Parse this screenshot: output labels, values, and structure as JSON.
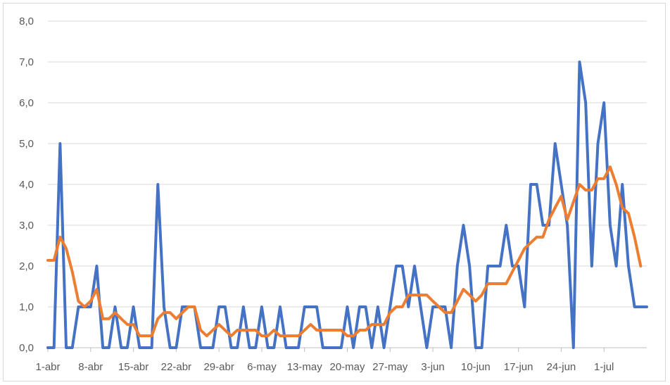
{
  "chart_data": {
    "type": "line",
    "title": "",
    "xlabel": "",
    "ylabel": "",
    "ylim": [
      0,
      8
    ],
    "yticks": [
      "0,0",
      "1,0",
      "2,0",
      "3,0",
      "4,0",
      "5,0",
      "6,0",
      "7,0",
      "8,0"
    ],
    "xtick_labels": [
      "1-abr",
      "8-abr",
      "15-abr",
      "22-abr",
      "29-abr",
      "6-may",
      "13-may",
      "20-may",
      "27-may",
      "3-jun",
      "10-jun",
      "17-jun",
      "24-jun",
      "1-jul"
    ],
    "grid": true,
    "legend": "none",
    "x_start": "1-abr",
    "series": [
      {
        "color": "#4472c4",
        "values": [
          0,
          0,
          5,
          0,
          0,
          1,
          1,
          1,
          2,
          0,
          0,
          1,
          0,
          0,
          1,
          0,
          0,
          0,
          4,
          1,
          0,
          0,
          1,
          1,
          1,
          0,
          0,
          0,
          1,
          1,
          0,
          0,
          1,
          0,
          0,
          1,
          0,
          0,
          1,
          0,
          0,
          0,
          1,
          1,
          1,
          0,
          0,
          0,
          0,
          1,
          0,
          1,
          1,
          0,
          1,
          0,
          1,
          2,
          2,
          1,
          2,
          1,
          0,
          1,
          1,
          1,
          0,
          2,
          3,
          2,
          0,
          0,
          2,
          2,
          2,
          3,
          2,
          2,
          1,
          4,
          4,
          3,
          3,
          5,
          4,
          3,
          0,
          7,
          6,
          2,
          5,
          6,
          3,
          2,
          4,
          2,
          1,
          1,
          1
        ]
      },
      {
        "color": "#ed7d31",
        "values": [
          2.14,
          2.14,
          2.71,
          2.43,
          1.86,
          1.14,
          1.0,
          1.14,
          1.43,
          0.71,
          0.71,
          0.86,
          0.71,
          0.57,
          0.57,
          0.29,
          0.29,
          0.29,
          0.71,
          0.86,
          0.86,
          0.71,
          0.86,
          1.0,
          1.0,
          0.43,
          0.29,
          0.43,
          0.57,
          0.43,
          0.29,
          0.43,
          0.43,
          0.43,
          0.43,
          0.29,
          0.29,
          0.43,
          0.29,
          0.29,
          0.29,
          0.29,
          0.43,
          0.57,
          0.43,
          0.43,
          0.43,
          0.43,
          0.43,
          0.29,
          0.29,
          0.43,
          0.43,
          0.57,
          0.57,
          0.57,
          0.86,
          1.0,
          1.0,
          1.29,
          1.29,
          1.29,
          1.29,
          1.14,
          1.0,
          0.86,
          0.86,
          1.14,
          1.43,
          1.29,
          1.14,
          1.29,
          1.57,
          1.57,
          1.57,
          1.57,
          1.86,
          2.14,
          2.43,
          2.57,
          2.71,
          2.71,
          3.14,
          3.43,
          3.71,
          3.14,
          3.57,
          4.0,
          3.86,
          3.86,
          4.14,
          4.14,
          4.43,
          4.0,
          3.43,
          3.29,
          2.71,
          2.0
        ]
      }
    ]
  }
}
